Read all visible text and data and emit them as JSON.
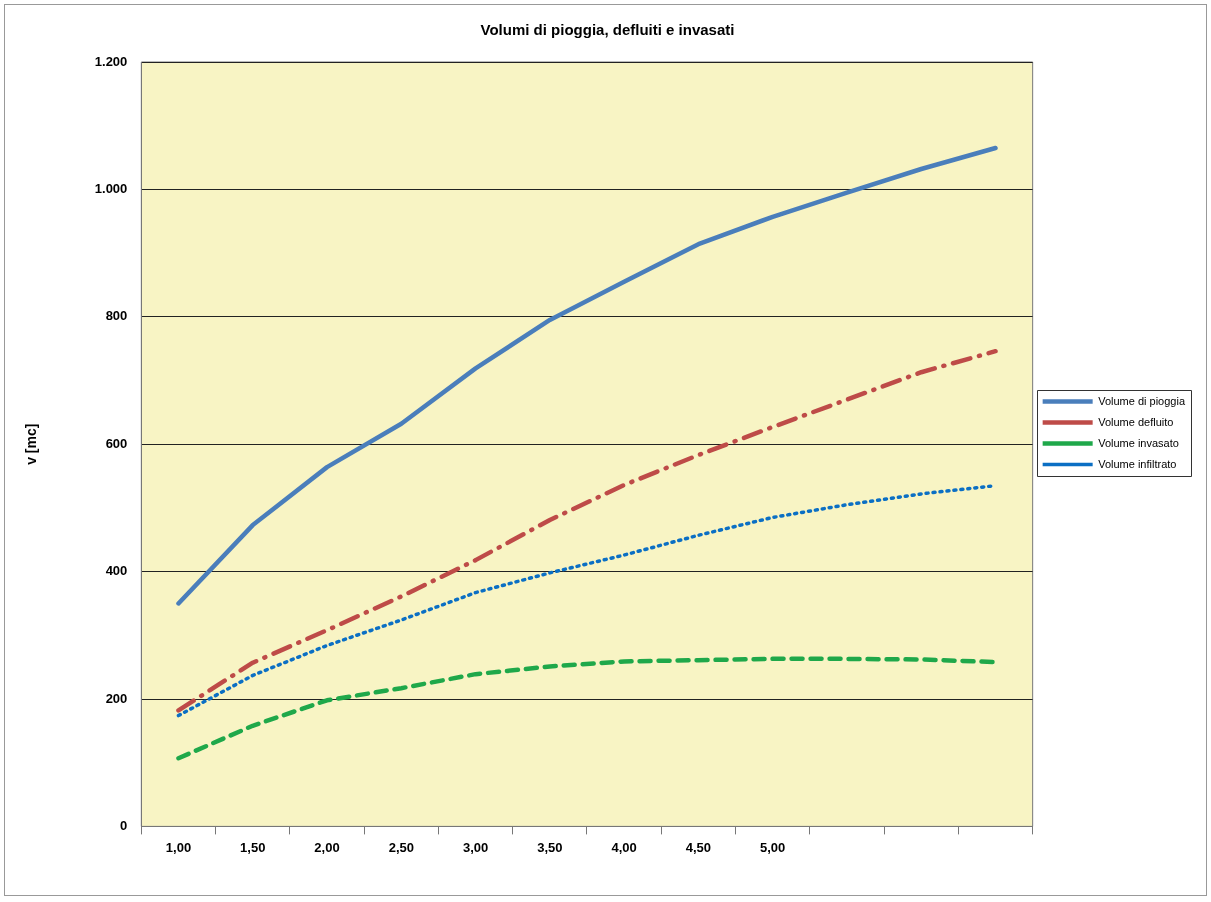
{
  "chart_data": {
    "type": "line",
    "title": "Volumi di pioggia, defluiti e invasati",
    "ylabel": "v [mc]",
    "categories": [
      "1,00",
      "1,50",
      "2,00",
      "2,50",
      "3,00",
      "3,50",
      "4,00",
      "4,50",
      "5,00",
      null,
      null,
      null
    ],
    "series": [
      {
        "name": "Volume di pioggia",
        "color": "#4a7ebb",
        "line_style": "solid",
        "values": [
          350,
          473,
          564,
          632,
          719,
          795,
          855,
          914,
          957,
          995,
          1032,
          1065
        ]
      },
      {
        "name": "Volume defluito",
        "color": "#be4b48",
        "line_style": "dashdot",
        "values": [
          182,
          257,
          308,
          361,
          418,
          481,
          536,
          583,
          627,
          670,
          713,
          746
        ]
      },
      {
        "name": "Volume invasato",
        "color": "#1fa84a",
        "line_style": "dashed",
        "values": [
          107,
          158,
          198,
          217,
          239,
          251,
          259,
          261,
          263,
          263,
          262,
          258
        ]
      },
      {
        "name": "Volume infiltrato",
        "color": "#0b6fc4",
        "line_style": "dotted",
        "values": [
          174,
          237,
          284,
          324,
          367,
          398,
          426,
          457,
          485,
          505,
          522,
          535
        ]
      }
    ],
    "ylim": [
      0,
      1200
    ],
    "yticks": [
      0,
      200,
      400,
      600,
      800,
      {
        "value": 1000,
        "label": "1.000"
      },
      {
        "value": 1200,
        "label": "1.200"
      }
    ],
    "grid": "y",
    "legend": "right",
    "marker": "none"
  }
}
